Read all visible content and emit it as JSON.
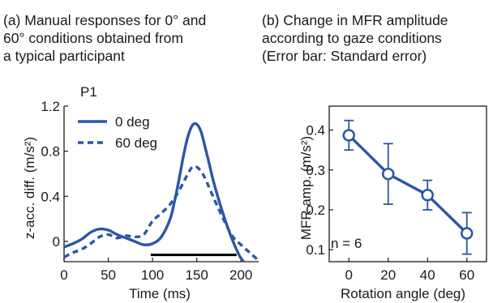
{
  "captions": {
    "a": [
      "(a) Manual responses for 0° and",
      "60° conditions obtained from",
      "a typical participant"
    ],
    "b": [
      "(b) Change in MFR amplitude",
      "according to gaze conditions",
      "(Error bar: Standard error)"
    ]
  },
  "colors": {
    "series": "#2a57a6",
    "axis": "#1a1a1a",
    "bar": "#000000"
  },
  "chart_data": [
    {
      "type": "line",
      "panel_label": "P1",
      "xlabel": "Time (ms)",
      "ylabel": "z-acc. diff. (m/s²)",
      "xlim": [
        0,
        220
      ],
      "ylim": [
        -0.18,
        1.2
      ],
      "x_ticks": [
        0,
        50,
        100,
        150,
        200
      ],
      "y_ticks": [
        0,
        0.4,
        0.8,
        1.2
      ],
      "y_tick_labels": [
        "0",
        "0.4",
        "0.8",
        "1.2"
      ],
      "legend_placement": "top-left",
      "grid": false,
      "series": [
        {
          "name": "0 deg",
          "style": "solid",
          "x": [
            0,
            10,
            20,
            30,
            40,
            50,
            60,
            70,
            80,
            90,
            100,
            110,
            120,
            125,
            130,
            135,
            140,
            145,
            150,
            155,
            160,
            165,
            170,
            180,
            190,
            200,
            210,
            220
          ],
          "y": [
            -0.05,
            -0.02,
            0.02,
            0.08,
            0.11,
            0.1,
            0.06,
            0.03,
            0.0,
            -0.03,
            -0.02,
            0.04,
            0.2,
            0.36,
            0.55,
            0.76,
            0.93,
            1.03,
            1.04,
            0.97,
            0.82,
            0.66,
            0.5,
            0.24,
            0.02,
            -0.15,
            -0.22,
            -0.26
          ]
        },
        {
          "name": "60 deg",
          "style": "dashed",
          "x": [
            0,
            10,
            20,
            30,
            40,
            50,
            60,
            70,
            80,
            90,
            100,
            110,
            120,
            130,
            140,
            145,
            150,
            155,
            160,
            170,
            180,
            190,
            200,
            210,
            220
          ],
          "y": [
            -0.14,
            -0.1,
            -0.07,
            -0.02,
            0.04,
            0.06,
            0.03,
            0.05,
            0.04,
            0.06,
            0.18,
            0.25,
            0.33,
            0.45,
            0.6,
            0.66,
            0.66,
            0.62,
            0.55,
            0.37,
            0.2,
            0.05,
            -0.03,
            -0.1,
            -0.17
          ]
        }
      ],
      "annotation_bar": {
        "x_start": 98,
        "x_end": 195,
        "y": -0.12
      }
    },
    {
      "type": "line",
      "xlabel": "Rotation angle (deg)",
      "ylabel": "MFR amp. (m/s²)",
      "xlim": [
        -10,
        70
      ],
      "ylim": [
        0.07,
        0.46
      ],
      "x_ticks": [
        0,
        20,
        40,
        60
      ],
      "y_ticks": [
        0.1,
        0.2,
        0.3,
        0.4
      ],
      "y_tick_labels": [
        "0.1",
        "0.2",
        "0.3",
        "0.4"
      ],
      "grid": false,
      "annotation": "n = 6",
      "series": [
        {
          "x": [
            0,
            20,
            40,
            60
          ],
          "y": [
            0.387,
            0.29,
            0.237,
            0.141
          ],
          "error": [
            0.037,
            0.076,
            0.037,
            0.052
          ]
        }
      ]
    }
  ]
}
